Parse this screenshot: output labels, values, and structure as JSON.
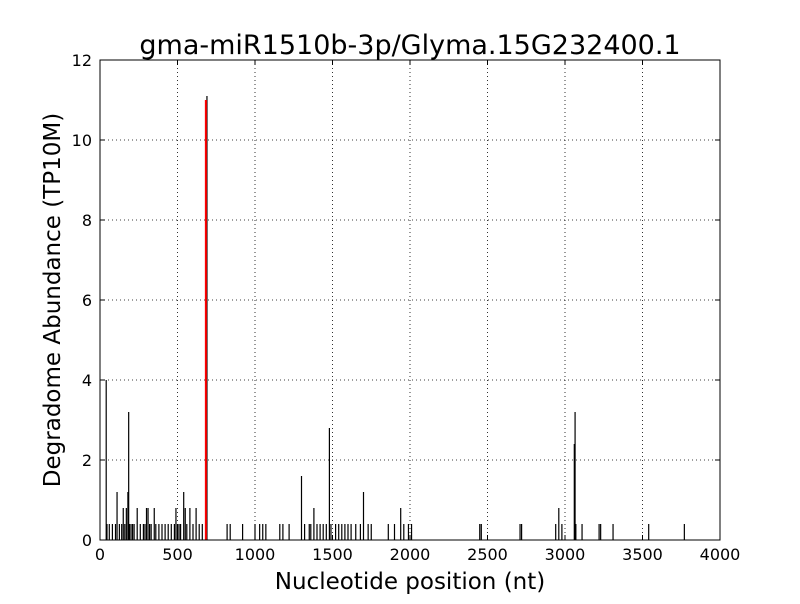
{
  "chart_data": {
    "type": "bar",
    "title": "gma-miR1510b-3p/Glyma.15G232400.1",
    "xlabel": "Nucleotide position (nt)",
    "ylabel": "Degradome Abundance (TP10M)",
    "xlim": [
      0,
      4000
    ],
    "ylim": [
      0,
      12
    ],
    "xticks": [
      "0",
      "500",
      "1000",
      "1500",
      "2000",
      "2500",
      "3000",
      "3500",
      "4000"
    ],
    "yticks": [
      "0",
      "2",
      "4",
      "6",
      "8",
      "10",
      "12"
    ],
    "grid": true,
    "colors": {
      "default": "#000000",
      "target": "#ff0000"
    },
    "target": {
      "position": 683,
      "value": 11.0
    },
    "peaks": [
      [
        40,
        4.0
      ],
      [
        45,
        0.4
      ],
      [
        60,
        0.4
      ],
      [
        80,
        0.4
      ],
      [
        100,
        0.4
      ],
      [
        110,
        1.2
      ],
      [
        125,
        0.4
      ],
      [
        140,
        0.4
      ],
      [
        150,
        0.8
      ],
      [
        160,
        0.4
      ],
      [
        170,
        0.8
      ],
      [
        180,
        1.2
      ],
      [
        185,
        3.2
      ],
      [
        190,
        0.4
      ],
      [
        200,
        0.4
      ],
      [
        210,
        0.4
      ],
      [
        220,
        0.4
      ],
      [
        240,
        0.8
      ],
      [
        260,
        0.4
      ],
      [
        280,
        0.4
      ],
      [
        290,
        0.4
      ],
      [
        300,
        0.8
      ],
      [
        310,
        0.8
      ],
      [
        320,
        0.4
      ],
      [
        330,
        0.4
      ],
      [
        350,
        0.8
      ],
      [
        360,
        0.4
      ],
      [
        380,
        0.4
      ],
      [
        400,
        0.4
      ],
      [
        420,
        0.4
      ],
      [
        440,
        0.4
      ],
      [
        460,
        0.4
      ],
      [
        480,
        0.4
      ],
      [
        490,
        0.8
      ],
      [
        500,
        0.4
      ],
      [
        510,
        0.4
      ],
      [
        520,
        0.4
      ],
      [
        540,
        1.2
      ],
      [
        550,
        0.8
      ],
      [
        560,
        0.4
      ],
      [
        580,
        0.8
      ],
      [
        600,
        0.4
      ],
      [
        620,
        0.8
      ],
      [
        640,
        0.4
      ],
      [
        660,
        0.4
      ],
      [
        690,
        11.1
      ],
      [
        820,
        0.4
      ],
      [
        840,
        0.4
      ],
      [
        920,
        0.4
      ],
      [
        1000,
        0.4
      ],
      [
        1030,
        0.4
      ],
      [
        1050,
        0.4
      ],
      [
        1070,
        0.4
      ],
      [
        1160,
        0.4
      ],
      [
        1180,
        0.4
      ],
      [
        1220,
        0.4
      ],
      [
        1300,
        1.6
      ],
      [
        1320,
        0.4
      ],
      [
        1350,
        0.4
      ],
      [
        1360,
        0.4
      ],
      [
        1380,
        0.8
      ],
      [
        1400,
        0.4
      ],
      [
        1420,
        0.4
      ],
      [
        1440,
        0.4
      ],
      [
        1460,
        0.4
      ],
      [
        1480,
        2.8
      ],
      [
        1490,
        0.4
      ],
      [
        1520,
        0.4
      ],
      [
        1540,
        0.4
      ],
      [
        1560,
        0.4
      ],
      [
        1580,
        0.4
      ],
      [
        1600,
        0.4
      ],
      [
        1620,
        0.4
      ],
      [
        1650,
        0.4
      ],
      [
        1680,
        0.4
      ],
      [
        1700,
        1.2
      ],
      [
        1730,
        0.4
      ],
      [
        1750,
        0.4
      ],
      [
        1860,
        0.4
      ],
      [
        1900,
        0.4
      ],
      [
        1940,
        0.8
      ],
      [
        1960,
        0.4
      ],
      [
        1990,
        0.4
      ],
      [
        2010,
        0.4
      ],
      [
        2450,
        0.4
      ],
      [
        2460,
        0.4
      ],
      [
        2710,
        0.4
      ],
      [
        2720,
        0.4
      ],
      [
        2940,
        0.4
      ],
      [
        2960,
        0.8
      ],
      [
        2980,
        0.4
      ],
      [
        3060,
        2.4
      ],
      [
        3065,
        3.2
      ],
      [
        3070,
        0.4
      ],
      [
        3110,
        0.4
      ],
      [
        3220,
        0.4
      ],
      [
        3230,
        0.4
      ],
      [
        3310,
        0.4
      ],
      [
        3540,
        0.4
      ],
      [
        3770,
        0.4
      ]
    ]
  }
}
